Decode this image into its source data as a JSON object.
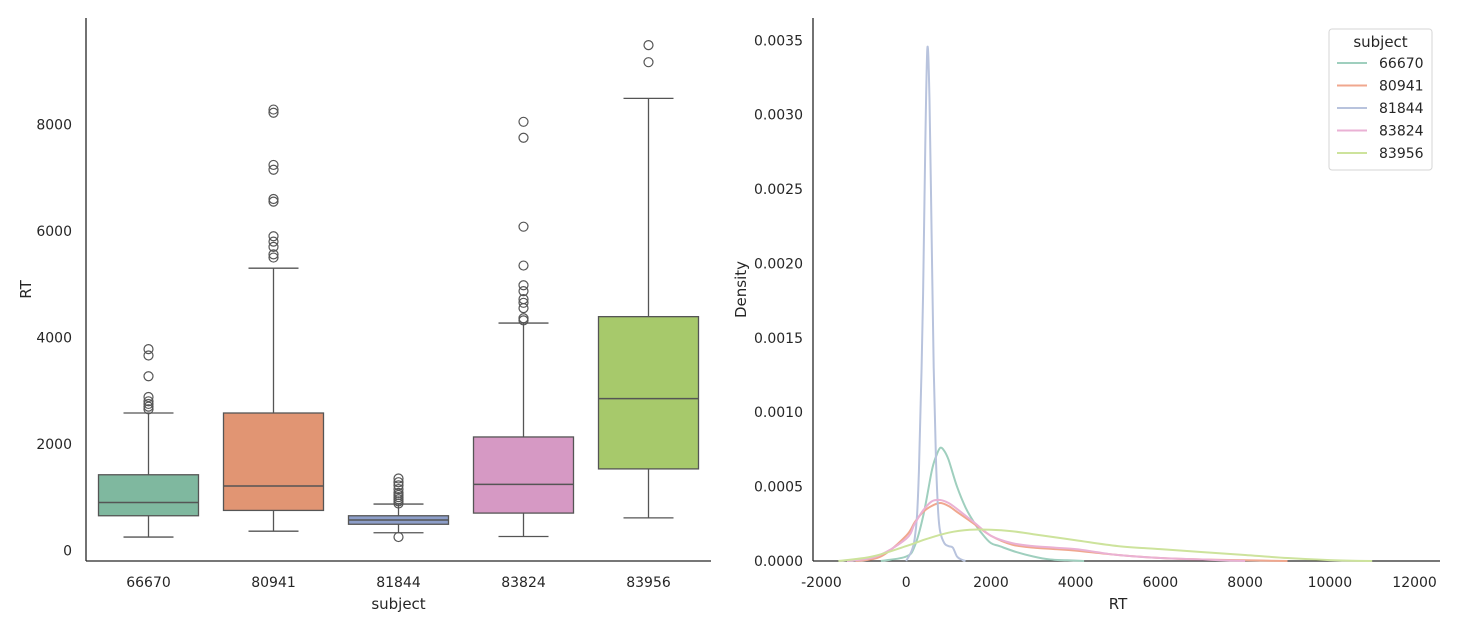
{
  "chart_data": [
    {
      "type": "box",
      "title": "",
      "xlabel": "subject",
      "ylabel": "RT",
      "ylim": [
        -200,
        10000
      ],
      "yticks": [
        0,
        2000,
        4000,
        6000,
        8000
      ],
      "categories": [
        "66670",
        "80941",
        "81844",
        "83824",
        "83956"
      ],
      "colors": [
        "#7fb89f",
        "#e19573",
        "#8d9ec9",
        "#d699c4",
        "#a7c96b"
      ],
      "boxes": [
        {
          "q1": 650,
          "median": 900,
          "q3": 1420,
          "whisker_low": 250,
          "whisker_high": 2580,
          "outliers": [
            2650,
            2700,
            2750,
            2800,
            2880,
            3270,
            3660,
            3780
          ]
        },
        {
          "q1": 750,
          "median": 1210,
          "q3": 2580,
          "whisker_low": 360,
          "whisker_high": 5300,
          "outliers": [
            5500,
            5560,
            5700,
            5800,
            5900,
            6550,
            6600,
            7150,
            7240,
            8220,
            8280
          ]
        },
        {
          "q1": 490,
          "median": 570,
          "q3": 650,
          "whisker_low": 330,
          "whisker_high": 870,
          "outliers": [
            880,
            920,
            960,
            1000,
            1040,
            1080,
            1150,
            1220,
            1280,
            1350,
            250
          ]
        },
        {
          "q1": 700,
          "median": 1240,
          "q3": 2130,
          "whisker_low": 260,
          "whisker_high": 4270,
          "outliers": [
            4320,
            4360,
            4550,
            4650,
            4720,
            4870,
            4980,
            5350,
            6080,
            7750,
            8050
          ]
        },
        {
          "q1": 1530,
          "median": 2850,
          "q3": 4390,
          "whisker_low": 610,
          "whisker_high": 8490,
          "outliers": [
            9170,
            9490
          ]
        }
      ]
    },
    {
      "type": "line",
      "title": "",
      "xlabel": "RT",
      "ylabel": "Density",
      "xlim": [
        -2200,
        12600
      ],
      "ylim": [
        0,
        0.00365
      ],
      "xticks": [
        -2000,
        0,
        2000,
        4000,
        6000,
        8000,
        10000,
        12000
      ],
      "yticks": [
        0.0,
        0.0005,
        0.001,
        0.0015,
        0.002,
        0.0025,
        0.003,
        0.0035
      ],
      "ytick_labels": [
        "0.0000",
        "0.0005",
        "0.0010",
        "0.0015",
        "0.0020",
        "0.0025",
        "0.0030",
        "0.0035"
      ],
      "legend": {
        "title": "subject",
        "position": "top-right"
      },
      "series": [
        {
          "name": "66670",
          "color": "#9fcfbe",
          "x": [
            -600,
            0,
            200,
            400,
            600,
            700,
            800,
            900,
            1000,
            1200,
            1400,
            1600,
            1800,
            2000,
            2200,
            2600,
            3000,
            3400,
            3800,
            4200
          ],
          "y": [
            0.0,
            3e-05,
            0.0001,
            0.0003,
            0.0006,
            0.0007,
            0.00076,
            0.00074,
            0.00068,
            0.0005,
            0.00036,
            0.00026,
            0.00018,
            0.00012,
            0.0001,
            6e-05,
            3e-05,
            1e-05,
            5e-06,
            0.0
          ]
        },
        {
          "name": "80941",
          "color": "#f0a78e",
          "x": [
            -1200,
            -600,
            0,
            200,
            400,
            600,
            800,
            1000,
            1200,
            1600,
            2000,
            2500,
            3000,
            3500,
            4000,
            5000,
            6000,
            7000,
            8000,
            9000
          ],
          "y": [
            0.0,
            3e-05,
            0.00017,
            0.00026,
            0.00033,
            0.00037,
            0.00039,
            0.00037,
            0.00033,
            0.00025,
            0.00017,
            0.00011,
            9e-05,
            8e-05,
            7e-05,
            4e-05,
            2e-05,
            1e-05,
            5e-06,
            0.0
          ]
        },
        {
          "name": "81844",
          "color": "#b8c3dd",
          "x": [
            0,
            200,
            300,
            400,
            450,
            500,
            550,
            600,
            650,
            700,
            750,
            800,
            900,
            1000,
            1100,
            1200,
            1300,
            1400
          ],
          "y": [
            0.0,
            0.00015,
            0.0006,
            0.0018,
            0.0028,
            0.00345,
            0.0031,
            0.0022,
            0.0013,
            0.0007,
            0.00035,
            0.0002,
            0.00012,
            0.0001,
            9e-05,
            3e-05,
            1e-05,
            0.0
          ]
        },
        {
          "name": "83824",
          "color": "#eab1d4",
          "x": [
            -1400,
            -700,
            0,
            200,
            400,
            600,
            800,
            1000,
            1200,
            1600,
            2000,
            2500,
            3000,
            3500,
            4000,
            4500,
            5000,
            6000,
            7000,
            8000
          ],
          "y": [
            0.0,
            3e-05,
            0.00015,
            0.00025,
            0.00034,
            0.0004,
            0.00041,
            0.00039,
            0.00035,
            0.00026,
            0.00017,
            0.00012,
            0.0001,
            9e-05,
            8e-05,
            6e-05,
            4e-05,
            2e-05,
            1e-05,
            0.0
          ]
        },
        {
          "name": "83956",
          "color": "#cde39c",
          "x": [
            -1600,
            -800,
            0,
            500,
            1000,
            1500,
            2000,
            2500,
            3000,
            4000,
            5000,
            6000,
            7000,
            8000,
            9000,
            10000,
            11000
          ],
          "y": [
            0.0,
            3e-05,
            0.0001,
            0.00015,
            0.00019,
            0.00021,
            0.00021,
            0.0002,
            0.00018,
            0.00014,
            0.0001,
            8e-05,
            6e-05,
            4e-05,
            2e-05,
            6e-06,
            0.0
          ]
        }
      ]
    }
  ]
}
